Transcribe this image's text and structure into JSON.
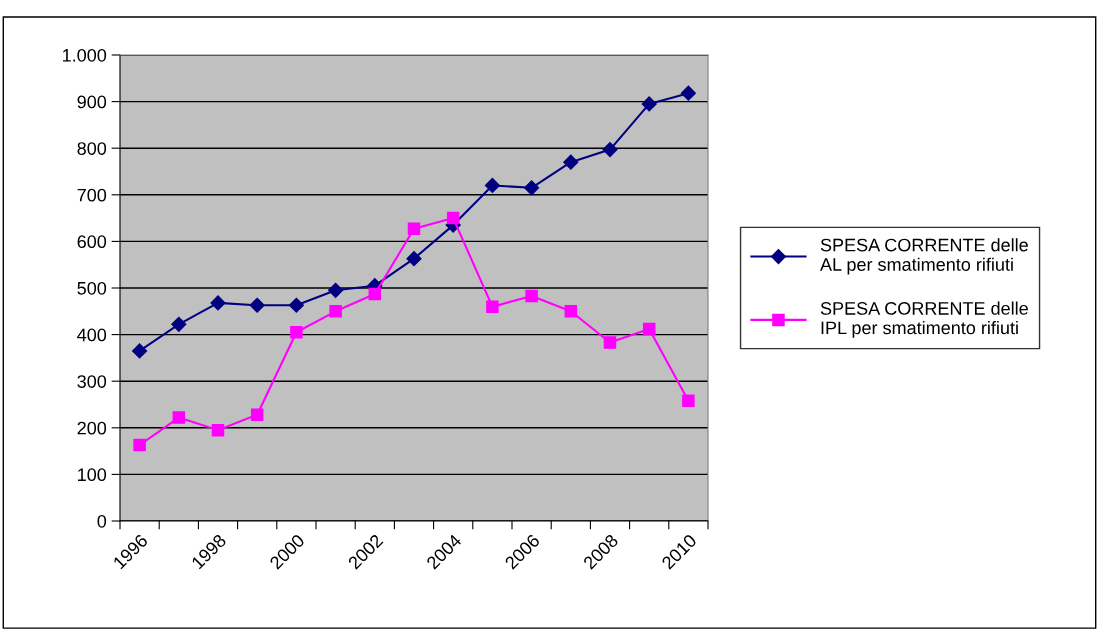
{
  "chart_data": {
    "type": "line",
    "categories": [
      "1996",
      null,
      "1998",
      null,
      "2000",
      null,
      "2002",
      null,
      "2004",
      null,
      "2006",
      null,
      "2008",
      null,
      "2010"
    ],
    "series": [
      {
        "name": "SPESA CORRENTE delle\nAL per smatimento rifiuti",
        "color": "#000080",
        "marker": "diamond",
        "values": [
          365,
          422,
          468,
          463,
          463,
          495,
          505,
          563,
          635,
          720,
          715,
          770,
          797,
          895,
          918
        ]
      },
      {
        "name": "SPESA CORRENTE delle\nIPL per smatimento rifiuti",
        "color": "#ff00ff",
        "marker": "square",
        "values": [
          163,
          222,
          195,
          228,
          405,
          450,
          487,
          627,
          650,
          460,
          483,
          450,
          383,
          412,
          258
        ]
      }
    ],
    "ylim": [
      0,
      1000
    ],
    "yticks": [
      0,
      100,
      200,
      300,
      400,
      500,
      600,
      700,
      800,
      900,
      {
        "value": 1000,
        "label": "1.000"
      }
    ],
    "grid": "y",
    "legend": "right",
    "line_style": "solid"
  }
}
